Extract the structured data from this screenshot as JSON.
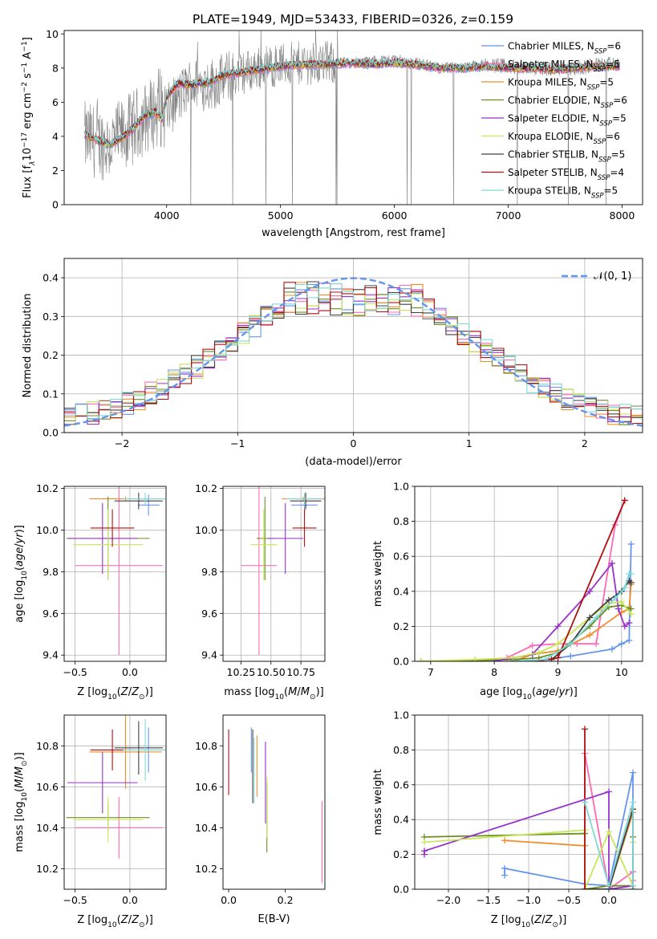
{
  "figure_title": "PLATE=1949, MJD=53433, FIBERID=0326, z=0.159",
  "colors": {
    "Chabrier MILES": "#6495ed",
    "Salpeter MILES": "#ff69b4",
    "Kroupa MILES": "#f28c28",
    "Chabrier ELODIE": "#6b8e23",
    "Salpeter ELODIE": "#9932cc",
    "Kroupa ELODIE": "#c8e65a",
    "Chabrier STELIB": "#404040",
    "Salpeter STELIB": "#b01010",
    "Kroupa STELIB": "#7fd8d8",
    "observed": "#808080"
  },
  "legend_spectrum": [
    {
      "model": "Chabrier MILES",
      "pre": "Chabrier MILES, N",
      "sub": "SSP",
      "post": "=6"
    },
    {
      "model": "Salpeter MILES",
      "pre": "Salpeter MILES, N",
      "sub": "SSP",
      "post": "=5"
    },
    {
      "model": "Kroupa MILES",
      "pre": "Kroupa MILES, N",
      "sub": "SSP",
      "post": "=5"
    },
    {
      "model": "Chabrier ELODIE",
      "pre": "Chabrier ELODIE, N",
      "sub": "SSP",
      "post": "=6"
    },
    {
      "model": "Salpeter ELODIE",
      "pre": "Salpeter ELODIE, N",
      "sub": "SSP",
      "post": "=5"
    },
    {
      "model": "Kroupa ELODIE",
      "pre": "Kroupa ELODIE, N",
      "sub": "SSP",
      "post": "=6"
    },
    {
      "model": "Chabrier STELIB",
      "pre": "Chabrier STELIB, N",
      "sub": "SSP",
      "post": "=5"
    },
    {
      "model": "Salpeter STELIB",
      "pre": "Salpeter STELIB, N",
      "sub": "SSP",
      "post": "=4"
    },
    {
      "model": "Kroupa STELIB",
      "pre": "Kroupa STELIB, N",
      "sub": "SSP",
      "post": "=5"
    }
  ],
  "chart_data": [
    {
      "id": "spectrum",
      "type": "line",
      "xlabel": "wavelength [Angstrom, rest frame]",
      "ylabel": "Flux [f_λ 10^-17 erg cm^-2 s^-1 A^-1]",
      "xlim": [
        3100,
        8180
      ],
      "ylim": [
        0,
        10.2
      ],
      "xticks": [
        4000,
        5000,
        6000,
        7000,
        8000
      ],
      "yticks": [
        0,
        2,
        4,
        6,
        8,
        10
      ],
      "grid": false,
      "legend_position": "top-right",
      "wavelength_range": [
        3280,
        7980
      ],
      "observed_envelope": {
        "x": [
          3280,
          3500,
          3700,
          3900,
          4000,
          4200,
          4400,
          4600,
          4800,
          5000,
          5200,
          5400,
          5600,
          5800,
          6000,
          6200,
          6400,
          6600,
          6800,
          7000,
          7200,
          7400,
          7600,
          7800,
          7980
        ],
        "y": [
          3.9,
          3.5,
          4.5,
          5.5,
          5.4,
          7.0,
          7.1,
          7.6,
          8.0,
          8.2,
          8.3,
          8.3,
          8.3,
          8.4,
          8.5,
          8.3,
          8.0,
          8.0,
          8.2,
          8.1,
          8.0,
          8.0,
          8.0,
          8.2,
          8.2
        ]
      },
      "model_continuum": {
        "x": [
          3280,
          3380,
          3500,
          3600,
          3700,
          3800,
          3900,
          3960,
          4000,
          4100,
          4200,
          4300,
          4400,
          4500,
          4600,
          4700,
          4800,
          4900,
          5000,
          5200,
          5400,
          5600,
          5800,
          6000,
          6200,
          6400,
          6600,
          6800,
          7000,
          7200,
          7400,
          7600,
          7800,
          7980
        ],
        "y": [
          4.1,
          3.8,
          3.5,
          3.9,
          4.4,
          5.2,
          5.4,
          5.0,
          6.3,
          7.1,
          7.0,
          7.1,
          7.2,
          7.6,
          7.7,
          7.8,
          7.9,
          8.0,
          8.1,
          8.2,
          8.2,
          8.3,
          8.2,
          8.3,
          8.2,
          8.0,
          8.0,
          8.1,
          8.0,
          8.0,
          7.9,
          8.0,
          8.1,
          8.1
        ]
      }
    },
    {
      "id": "residuals",
      "type": "histogram",
      "xlabel": "(data-model)/error",
      "ylabel": "Normed distribution",
      "xlim": [
        -2.5,
        2.5
      ],
      "ylim": [
        0,
        0.45
      ],
      "xticks": [
        -2,
        -1,
        0,
        1,
        2
      ],
      "yticks": [
        0.0,
        0.1,
        0.2,
        0.3,
        0.4
      ],
      "grid": true,
      "bins": 50,
      "reference_curve": {
        "label": "𝒩(0, 1)",
        "mean": 0,
        "sigma": 1,
        "style": "dashed"
      },
      "legend_position": "top-right"
    },
    {
      "id": "age-vs-Z",
      "type": "errorbar",
      "xlabel": "Z [log10(Z/Z⊙)]",
      "ylabel": "age [log10(age/yr)]",
      "xlim": [
        -0.6,
        0.33
      ],
      "ylim": [
        9.37,
        10.21
      ],
      "xticks": [
        -0.5,
        0.0
      ],
      "yticks": [
        9.4,
        9.6,
        9.8,
        10.0,
        10.2
      ],
      "grid": true,
      "series": [
        {
          "model": "Chabrier MILES",
          "x": 0.17,
          "xerr": 0.1,
          "y": 10.12,
          "yerr": 0.05
        },
        {
          "model": "Salpeter MILES",
          "x": -0.1,
          "xerr": 0.4,
          "y": 9.83,
          "yerr": 0.43
        },
        {
          "model": "Kroupa MILES",
          "x": -0.04,
          "xerr": 0.33,
          "y": 10.15,
          "yerr": 0.01
        },
        {
          "model": "Chabrier ELODIE",
          "x": -0.2,
          "xerr": 0.38,
          "y": 9.96,
          "yerr": 0.2
        },
        {
          "model": "Salpeter ELODIE",
          "x": -0.25,
          "xerr": 0.32,
          "y": 9.96,
          "yerr": 0.17
        },
        {
          "model": "Kroupa ELODIE",
          "x": -0.2,
          "xerr": 0.32,
          "y": 9.93,
          "yerr": 0.17
        },
        {
          "model": "Chabrier STELIB",
          "x": 0.08,
          "xerr": 0.22,
          "y": 10.14,
          "yerr": 0.04
        },
        {
          "model": "Salpeter STELIB",
          "x": -0.16,
          "xerr": 0.2,
          "y": 10.01,
          "yerr": 0.09
        },
        {
          "model": "Kroupa STELIB",
          "x": 0.14,
          "xerr": 0.2,
          "y": 10.15,
          "yerr": 0.03
        }
      ]
    },
    {
      "id": "age-vs-mass",
      "type": "errorbar",
      "xlabel": "mass [log10(M/M⊙)]",
      "ylabel": "",
      "xlim": [
        10.1,
        10.95
      ],
      "ylim": [
        9.37,
        10.21
      ],
      "xticks": [
        10.25,
        10.5,
        10.75
      ],
      "yticks": [
        9.4,
        9.6,
        9.8,
        10.0,
        10.2
      ],
      "grid": true,
      "series": [
        {
          "model": "Chabrier MILES",
          "x": 10.78,
          "xerr": 0.11,
          "y": 10.12,
          "yerr": 0.05
        },
        {
          "model": "Salpeter MILES",
          "x": 10.4,
          "xerr": 0.15,
          "y": 9.83,
          "yerr": 0.43
        },
        {
          "model": "Kroupa MILES",
          "x": 10.77,
          "xerr": 0.18,
          "y": 10.15,
          "yerr": 0.01
        },
        {
          "model": "Chabrier ELODIE",
          "x": 10.45,
          "xerr": 0.07,
          "y": 9.96,
          "yerr": 0.2
        },
        {
          "model": "Salpeter ELODIE",
          "x": 10.62,
          "xerr": 0.15,
          "y": 9.96,
          "yerr": 0.17
        },
        {
          "model": "Kroupa ELODIE",
          "x": 10.44,
          "xerr": 0.11,
          "y": 9.93,
          "yerr": 0.17
        },
        {
          "model": "Chabrier STELIB",
          "x": 10.79,
          "xerr": 0.13,
          "y": 10.14,
          "yerr": 0.04
        },
        {
          "model": "Salpeter STELIB",
          "x": 10.78,
          "xerr": 0.1,
          "y": 10.01,
          "yerr": 0.09
        },
        {
          "model": "Kroupa STELIB",
          "x": 10.78,
          "xerr": 0.15,
          "y": 10.15,
          "yerr": 0.03
        }
      ]
    },
    {
      "id": "mass-weight-vs-age",
      "type": "line",
      "xlabel": "age [log10(age/yr)]",
      "ylabel": "mass weight",
      "xlim": [
        6.75,
        10.33
      ],
      "ylim": [
        0,
        1.0
      ],
      "xticks": [
        7,
        8,
        9,
        10
      ],
      "yticks": [
        0.0,
        0.2,
        0.4,
        0.6,
        0.8,
        1.0
      ],
      "grid": true,
      "series": [
        {
          "model": "Chabrier MILES",
          "x": [
            8.6,
            9.2,
            9.85,
            10.0,
            10.12,
            10.15
          ],
          "y": [
            0.0,
            0.03,
            0.07,
            0.1,
            0.12,
            0.67
          ]
        },
        {
          "model": "Salpeter MILES",
          "x": [
            8.2,
            8.6,
            9.0,
            9.3,
            9.6,
            9.9,
            10.05
          ],
          "y": [
            0.02,
            0.09,
            0.1,
            0.1,
            0.1,
            0.78,
            0.92
          ]
        },
        {
          "model": "Kroupa MILES",
          "x": [
            8.3,
            8.6,
            9.0,
            9.5,
            10.0,
            10.12,
            10.15
          ],
          "y": [
            0.0,
            0.04,
            0.06,
            0.15,
            0.28,
            0.3,
            0.44
          ]
        },
        {
          "model": "Chabrier ELODIE",
          "x": [
            6.85,
            7.7,
            8.3,
            8.7,
            9.0,
            9.5,
            9.8,
            10.0,
            10.15
          ],
          "y": [
            0.0,
            0.005,
            0.01,
            0.02,
            0.05,
            0.2,
            0.31,
            0.32,
            0.3
          ]
        },
        {
          "model": "Salpeter ELODIE",
          "x": [
            8.0,
            8.3,
            8.6,
            9.0,
            9.5,
            9.85,
            9.95,
            10.05,
            10.12
          ],
          "y": [
            0.0,
            0.02,
            0.04,
            0.2,
            0.4,
            0.56,
            0.3,
            0.2,
            0.22
          ]
        },
        {
          "model": "Kroupa ELODIE",
          "x": [
            6.85,
            7.7,
            8.3,
            8.7,
            9.0,
            9.5,
            9.8,
            10.0,
            10.15
          ],
          "y": [
            0.0,
            0.01,
            0.02,
            0.05,
            0.1,
            0.25,
            0.33,
            0.34,
            0.27
          ]
        },
        {
          "model": "Chabrier STELIB",
          "x": [
            8.3,
            8.9,
            9.2,
            9.5,
            9.8,
            10.0,
            10.12,
            10.15
          ],
          "y": [
            0.0,
            0.01,
            0.1,
            0.25,
            0.35,
            0.4,
            0.46,
            0.45
          ]
        },
        {
          "model": "Salpeter STELIB",
          "x": [
            8.3,
            8.7,
            9.0,
            10.05
          ],
          "y": [
            0.0,
            0.0,
            0.02,
            0.92
          ]
        },
        {
          "model": "Kroupa STELIB",
          "x": [
            8.3,
            8.8,
            9.2,
            9.6,
            9.9,
            10.05,
            10.12,
            10.15
          ],
          "y": [
            0.0,
            0.01,
            0.1,
            0.25,
            0.36,
            0.42,
            0.5,
            0.5
          ]
        }
      ]
    },
    {
      "id": "mass-vs-Z",
      "type": "errorbar",
      "xlabel": "Z [log10(Z/Z⊙)]",
      "ylabel": "mass [log10(M/M⊙)]",
      "xlim": [
        -0.6,
        0.33
      ],
      "ylim": [
        10.1,
        10.95
      ],
      "xticks": [
        -0.5,
        0.0
      ],
      "yticks": [
        10.2,
        10.4,
        10.6,
        10.8
      ],
      "grid": true,
      "series": [
        {
          "model": "Chabrier MILES",
          "x": 0.17,
          "xerr": 0.1,
          "y": 10.78,
          "yerr": 0.11
        },
        {
          "model": "Salpeter MILES",
          "x": -0.1,
          "xerr": 0.4,
          "y": 10.4,
          "yerr": 0.15
        },
        {
          "model": "Kroupa MILES",
          "x": -0.04,
          "xerr": 0.33,
          "y": 10.77,
          "yerr": 0.18
        },
        {
          "model": "Chabrier ELODIE",
          "x": -0.2,
          "xerr": 0.38,
          "y": 10.45,
          "yerr": 0.07
        },
        {
          "model": "Salpeter ELODIE",
          "x": -0.25,
          "xerr": 0.32,
          "y": 10.62,
          "yerr": 0.15
        },
        {
          "model": "Kroupa ELODIE",
          "x": -0.2,
          "xerr": 0.32,
          "y": 10.44,
          "yerr": 0.11
        },
        {
          "model": "Chabrier STELIB",
          "x": 0.08,
          "xerr": 0.22,
          "y": 10.79,
          "yerr": 0.13
        },
        {
          "model": "Salpeter STELIB",
          "x": -0.16,
          "xerr": 0.2,
          "y": 10.78,
          "yerr": 0.1
        },
        {
          "model": "Kroupa STELIB",
          "x": 0.14,
          "xerr": 0.2,
          "y": 10.78,
          "yerr": 0.15
        }
      ]
    },
    {
      "id": "mass-vs-EBV",
      "type": "errorbar",
      "xlabel": "E(B-V)",
      "ylabel": "",
      "xlim": [
        -0.02,
        0.34
      ],
      "ylim": [
        10.1,
        10.95
      ],
      "xticks": [
        0.0,
        0.2
      ],
      "yticks": [
        10.2,
        10.4,
        10.6,
        10.8
      ],
      "grid": false,
      "series": [
        {
          "model": "Chabrier MILES",
          "x": 0.08,
          "xerr": 0,
          "y": 10.78,
          "yerr": 0.11
        },
        {
          "model": "Salpeter MILES",
          "x": 0.33,
          "xerr": 0,
          "y": 10.33,
          "yerr": 0.2
        },
        {
          "model": "Kroupa MILES",
          "x": 0.1,
          "xerr": 0,
          "y": 10.7,
          "yerr": 0.15
        },
        {
          "model": "Chabrier ELODIE",
          "x": 0.135,
          "xerr": 0,
          "y": 10.45,
          "yerr": 0.17
        },
        {
          "model": "Salpeter ELODIE",
          "x": 0.13,
          "xerr": 0,
          "y": 10.62,
          "yerr": 0.2
        },
        {
          "model": "Kroupa ELODIE",
          "x": 0.135,
          "xerr": 0,
          "y": 10.5,
          "yerr": 0.15
        },
        {
          "model": "Chabrier STELIB",
          "x": 0.085,
          "xerr": 0,
          "y": 10.7,
          "yerr": 0.18
        },
        {
          "model": "Salpeter STELIB",
          "x": 0.0,
          "xerr": 0,
          "y": 10.72,
          "yerr": 0.16
        },
        {
          "model": "Kroupa STELIB",
          "x": 0.09,
          "xerr": 0,
          "y": 10.68,
          "yerr": 0.16
        }
      ]
    },
    {
      "id": "mass-weight-vs-Z",
      "type": "line",
      "xlabel": "Z [log10(Z/Z⊙)]",
      "ylabel": "mass weight",
      "xlim": [
        -2.42,
        0.42
      ],
      "ylim": [
        0,
        1.0
      ],
      "xticks": [
        -2.0,
        -1.5,
        -1.0,
        -0.5,
        0.0
      ],
      "yticks": [
        0.0,
        0.2,
        0.4,
        0.6,
        0.8,
        1.0
      ],
      "grid": true,
      "series": [
        {
          "model": "Chabrier MILES",
          "x": [
            -1.3,
            -1.3,
            -0.3,
            0.0,
            0.3,
            0.3
          ],
          "y": [
            0.08,
            0.12,
            0.03,
            0.02,
            0.67,
            0.1
          ]
        },
        {
          "model": "Salpeter MILES",
          "x": [
            -0.3,
            -0.3,
            0.0,
            0.3,
            0.3
          ],
          "y": [
            0.0,
            0.78,
            0.0,
            0.1,
            0.05
          ]
        },
        {
          "model": "Kroupa MILES",
          "x": [
            -1.3,
            -0.3,
            -0.3,
            0.0,
            0.3,
            0.3
          ],
          "y": [
            0.28,
            0.25,
            0.0,
            0.0,
            0.44,
            0.3
          ]
        },
        {
          "model": "Chabrier ELODIE",
          "x": [
            -2.3,
            -0.3,
            -0.3,
            0.0,
            0.3,
            0.3
          ],
          "y": [
            0.3,
            0.32,
            0.0,
            0.02,
            0.02,
            0.3
          ]
        },
        {
          "model": "Salpeter ELODIE",
          "x": [
            -2.3,
            -2.3,
            0.0,
            0.0,
            0.3
          ],
          "y": [
            0.2,
            0.22,
            0.56,
            0.0,
            0.02
          ]
        },
        {
          "model": "Kroupa ELODIE",
          "x": [
            -2.3,
            -0.3,
            -0.3,
            0.0,
            0.3,
            0.3
          ],
          "y": [
            0.27,
            0.34,
            0.0,
            0.33,
            0.02,
            0.27
          ]
        },
        {
          "model": "Chabrier STELIB",
          "x": [
            -0.3,
            0.0,
            0.3,
            0.3
          ],
          "y": [
            0.0,
            0.0,
            0.46,
            0.0
          ]
        },
        {
          "model": "Salpeter STELIB",
          "x": [
            -0.3,
            -0.3
          ],
          "y": [
            0.0,
            0.92
          ]
        },
        {
          "model": "Kroupa STELIB",
          "x": [
            -0.3,
            0.0,
            0.3,
            0.3
          ],
          "y": [
            0.5,
            0.02,
            0.5,
            0.02
          ]
        }
      ]
    }
  ],
  "labels": {
    "spec_ylabel": "Flux [f",
    "hist_ylabel": "Normed distribution",
    "hist_xlabel": "(data-model)/error",
    "normal_label": "𝒩(0, 1)",
    "mw_ylabel": "mass weight"
  }
}
